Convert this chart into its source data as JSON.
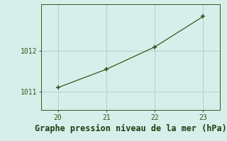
{
  "x": [
    20,
    21,
    22,
    23
  ],
  "y": [
    1011.1,
    1011.55,
    1012.1,
    1012.85
  ],
  "line_color": "#2d5a1b",
  "marker_color": "#2d5a1b",
  "bg_color": "#d7eeea",
  "grid_color": "#aed4cc",
  "axis_color": "#2d5a1b",
  "tick_color": "#2d5a1b",
  "title": "Graphe pression niveau de la mer (hPa)",
  "title_color": "#1a4010",
  "title_fontsize": 8.5,
  "xlim": [
    19.65,
    23.35
  ],
  "ylim": [
    1010.55,
    1013.15
  ],
  "yticks": [
    1011,
    1012
  ],
  "xticks": [
    20,
    21,
    22,
    23
  ]
}
